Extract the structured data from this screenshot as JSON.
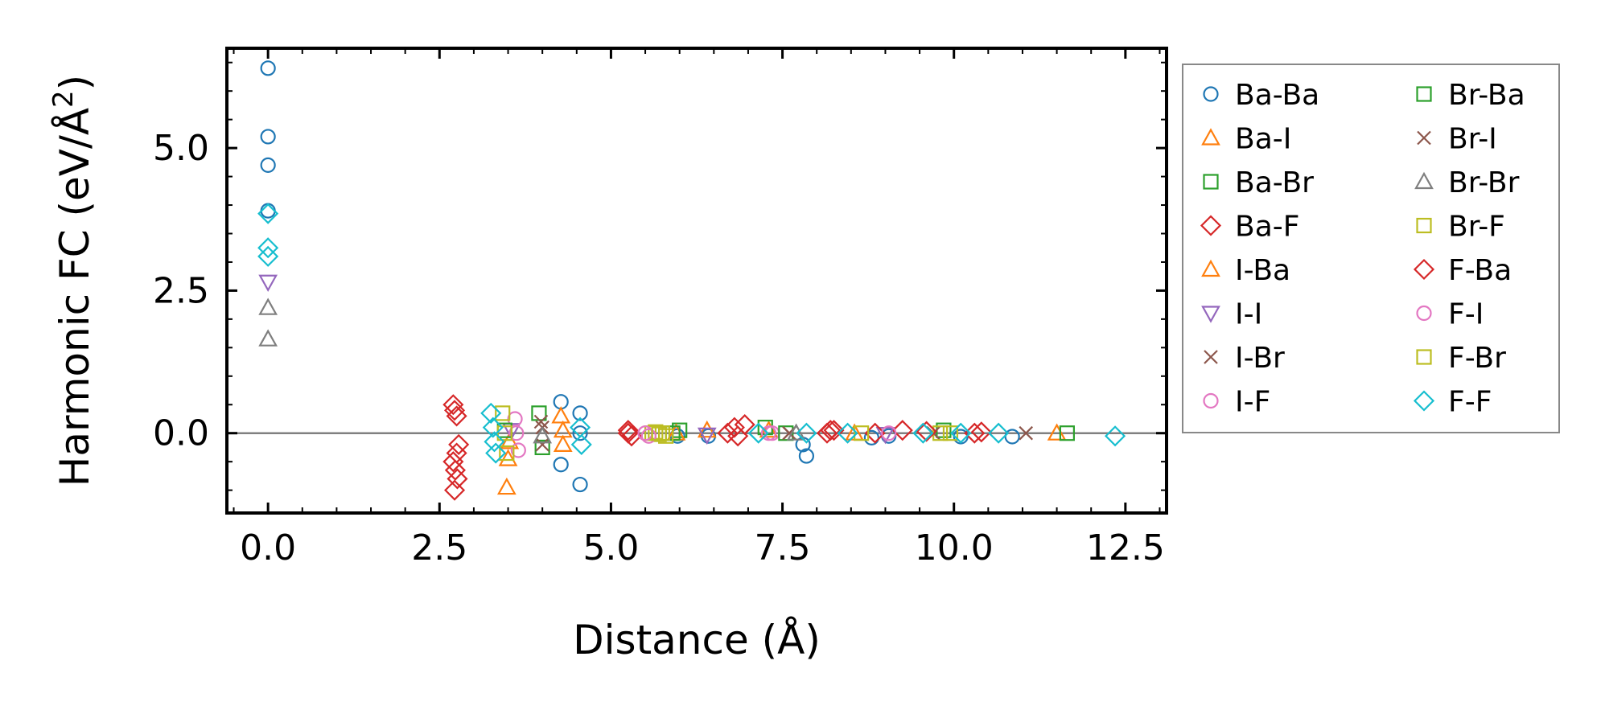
{
  "chart_data": {
    "type": "scatter",
    "xlabel": "Distance (Å)",
    "ylabel_main": "Harmonic FC (eV/Å",
    "ylabel_sup": "2",
    "ylabel_close": ")",
    "xlim": [
      -0.6,
      13.1
    ],
    "ylim": [
      -1.4,
      6.75
    ],
    "xticks": [
      0.0,
      2.5,
      5.0,
      7.5,
      10.0,
      12.5
    ],
    "xtick_labels": [
      "0.0",
      "2.5",
      "5.0",
      "7.5",
      "10.0",
      "12.5"
    ],
    "yticks": [
      0.0,
      2.5,
      5.0
    ],
    "ytick_labels": [
      "0.0",
      "2.5",
      "5.0"
    ],
    "zero_line": 0.0,
    "legend_position": "outside-right",
    "series": [
      {
        "name": "Ba-Ba",
        "marker": "circle",
        "color": "#1f77b4",
        "x": [
          0.0,
          0.0,
          0.0,
          0.0,
          4.27,
          4.27,
          4.55,
          4.55,
          4.55,
          5.97,
          6.42,
          7.8,
          7.85,
          8.8,
          9.05,
          10.1,
          10.85
        ],
        "y": [
          6.4,
          5.2,
          4.7,
          3.9,
          0.55,
          -0.55,
          0.35,
          -0.9,
          0.0,
          -0.05,
          -0.05,
          -0.2,
          -0.4,
          -0.08,
          -0.05,
          -0.06,
          -0.06
        ]
      },
      {
        "name": "Ba-I",
        "marker": "triangle-up",
        "color": "#ff7f0e",
        "x": [
          3.48,
          4.27,
          4.3,
          6.4,
          7.3,
          11.5
        ],
        "y": [
          -0.95,
          0.3,
          -0.2,
          0.05,
          0.05,
          0.0
        ]
      },
      {
        "name": "Ba-Br",
        "marker": "square",
        "color": "#2ca02c",
        "x": [
          3.95,
          4.0,
          6.0,
          7.25,
          9.85,
          11.65
        ],
        "y": [
          0.35,
          -0.25,
          0.05,
          0.1,
          0.05,
          0.0
        ]
      },
      {
        "name": "Ba-F",
        "marker": "diamond",
        "color": "#d62728",
        "x": [
          2.7,
          2.72,
          2.75,
          2.78,
          2.7,
          2.73,
          2.76,
          2.72,
          2.75,
          5.25,
          6.8,
          6.95,
          8.2,
          9.25,
          10.4
        ],
        "y": [
          0.5,
          0.4,
          0.3,
          -0.2,
          -0.5,
          -0.65,
          -0.8,
          -1.0,
          -0.35,
          0.05,
          0.1,
          0.15,
          0.05,
          0.05,
          0.02
        ]
      },
      {
        "name": "I-Ba",
        "marker": "triangle-up",
        "color": "#ff7f0e",
        "x": [
          3.5,
          3.52,
          4.3,
          5.95,
          8.55
        ],
        "y": [
          -0.45,
          -0.15,
          0.05,
          0.0,
          0.0
        ]
      },
      {
        "name": "I-I",
        "marker": "triangle-down",
        "color": "#9467bd",
        "x": [
          0.0,
          3.55,
          6.4,
          9.0
        ],
        "y": [
          2.65,
          0.05,
          -0.03,
          -0.02
        ]
      },
      {
        "name": "I-Br",
        "marker": "x",
        "color": "#8c564b",
        "x": [
          3.98,
          4.0,
          7.6,
          9.7,
          11.05
        ],
        "y": [
          0.2,
          -0.2,
          0.0,
          0.0,
          0.0
        ]
      },
      {
        "name": "I-F",
        "marker": "circle",
        "color": "#e377c2",
        "x": [
          3.6,
          3.62,
          3.65,
          5.5,
          7.35
        ],
        "y": [
          0.25,
          0.0,
          -0.3,
          0.0,
          0.0
        ]
      },
      {
        "name": "Br-Ba",
        "marker": "square",
        "color": "#2ca02c",
        "x": [
          3.45,
          5.9,
          7.55
        ],
        "y": [
          0.05,
          0.0,
          0.0
        ]
      },
      {
        "name": "Br-I",
        "marker": "x",
        "color": "#8c564b",
        "x": [
          4.0,
          7.6
        ],
        "y": [
          0.1,
          0.0
        ]
      },
      {
        "name": "Br-Br",
        "marker": "triangle-up",
        "color": "#7f7f7f",
        "x": [
          0.0,
          0.0,
          4.0,
          7.7
        ],
        "y": [
          2.2,
          1.65,
          -0.05,
          0.0
        ]
      },
      {
        "name": "Br-F",
        "marker": "square",
        "color": "#bcbd22",
        "x": [
          3.42,
          3.45,
          3.48,
          5.6,
          5.65,
          5.7,
          5.75,
          9.8
        ],
        "y": [
          0.35,
          0.0,
          -0.35,
          0.0,
          0.02,
          -0.02,
          0.0,
          0.0
        ]
      },
      {
        "name": "F-Ba",
        "marker": "diamond",
        "color": "#d62728",
        "x": [
          5.25,
          5.3,
          6.7,
          6.85,
          8.15,
          8.25,
          8.85,
          9.6,
          10.3
        ],
        "y": [
          0.0,
          -0.05,
          0.0,
          -0.05,
          0.0,
          0.05,
          0.0,
          0.03,
          0.0
        ]
      },
      {
        "name": "F-I",
        "marker": "circle",
        "color": "#e377c2",
        "x": [
          5.5,
          5.55,
          7.3,
          9.05
        ],
        "y": [
          0.0,
          -0.05,
          0.0,
          0.0
        ]
      },
      {
        "name": "F-Br",
        "marker": "square",
        "color": "#bcbd22",
        "x": [
          5.7,
          5.8,
          8.65,
          9.95
        ],
        "y": [
          0.0,
          -0.05,
          0.0,
          0.0
        ]
      },
      {
        "name": "F-F",
        "marker": "diamond",
        "color": "#17becf",
        "x": [
          0.0,
          0.0,
          0.0,
          3.25,
          3.28,
          3.3,
          3.32,
          4.55,
          4.57,
          7.15,
          7.85,
          8.45,
          9.55,
          10.1,
          10.65,
          12.35
        ],
        "y": [
          3.85,
          3.25,
          3.1,
          0.35,
          0.1,
          -0.15,
          -0.35,
          0.1,
          -0.2,
          0.0,
          0.0,
          0.0,
          0.0,
          0.0,
          0.0,
          -0.05
        ]
      }
    ]
  }
}
